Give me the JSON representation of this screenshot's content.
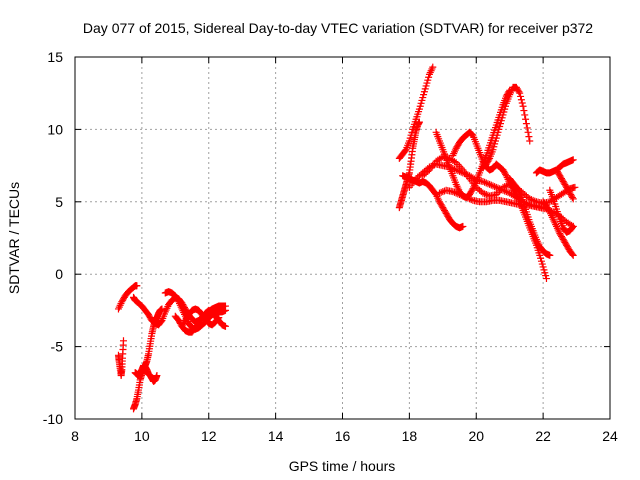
{
  "chart_data": {
    "type": "scatter",
    "title": "Day 077 of 2015, Sidereal Day-to-day VTEC variation (SDTVAR) for receiver p372",
    "xlabel": "GPS time / hours",
    "ylabel": "SDTVAR / TECUs",
    "xlim": [
      8,
      24
    ],
    "ylim": [
      -10,
      15
    ],
    "xticks": [
      "8",
      "10",
      "12",
      "14",
      "16",
      "18",
      "20",
      "22",
      "24"
    ],
    "yticks": [
      "15",
      "10",
      "5",
      "0",
      "-5",
      "-10"
    ],
    "xtick_values": [
      8,
      10,
      12,
      14,
      16,
      18,
      20,
      22,
      24
    ],
    "ytick_values": [
      15,
      10,
      5,
      0,
      -5,
      -10
    ],
    "grid": true,
    "marker": "plus",
    "color": "#ff0000",
    "series": [
      {
        "x": [
          9.3,
          9.4,
          9.5,
          9.6,
          9.7,
          9.8,
          9.85
        ],
        "y": [
          -2.4,
          -1.9,
          -1.5,
          -1.2,
          -1.0,
          -0.8,
          -0.8
        ]
      },
      {
        "x": [
          9.3,
          9.32,
          9.35,
          9.38,
          9.4,
          9.42,
          9.45
        ],
        "y": [
          -5.6,
          -6.0,
          -6.5,
          -7.0,
          -6.6,
          -5.8,
          -4.6
        ]
      },
      {
        "x": [
          9.75,
          9.8,
          9.85,
          9.9,
          9.95,
          10.0,
          10.05,
          10.1,
          10.15,
          10.2,
          10.25,
          10.3,
          10.35,
          10.4,
          10.45,
          10.5,
          10.55,
          10.6
        ],
        "y": [
          -9.3,
          -9.0,
          -8.6,
          -8.0,
          -7.3,
          -6.9,
          -6.6,
          -6.3,
          -6.0,
          -5.5,
          -4.8,
          -4.1,
          -3.6,
          -3.2,
          -3.0,
          -2.7,
          -2.5,
          -2.4
        ]
      },
      {
        "x": [
          9.8,
          9.85,
          9.9,
          9.95,
          10.0,
          10.05,
          10.1,
          10.15,
          10.2,
          10.25,
          10.3,
          10.35,
          10.4,
          10.45
        ],
        "y": [
          -6.8,
          -6.9,
          -7.0,
          -6.8,
          -6.6,
          -6.3,
          -6.4,
          -6.6,
          -6.9,
          -7.0,
          -7.2,
          -7.4,
          -7.3,
          -7.0
        ]
      },
      {
        "x": [
          9.75,
          9.8,
          9.9,
          10.0,
          10.1,
          10.2,
          10.3,
          10.4,
          10.5,
          10.6,
          10.7,
          10.8,
          10.9,
          11.0,
          11.1,
          11.2,
          11.3,
          11.4,
          11.5,
          11.6,
          11.7,
          11.8,
          11.9,
          12.0,
          12.1,
          12.2,
          12.3,
          12.4,
          12.5
        ],
        "y": [
          -1.6,
          -1.8,
          -2.0,
          -2.2,
          -2.5,
          -2.8,
          -3.2,
          -3.4,
          -3.5,
          -3.2,
          -2.6,
          -2.1,
          -1.8,
          -1.6,
          -1.7,
          -2.0,
          -2.4,
          -2.8,
          -3.1,
          -3.3,
          -3.2,
          -3.0,
          -2.8,
          -2.6,
          -2.4,
          -2.3,
          -2.2,
          -2.2,
          -2.2
        ]
      },
      {
        "x": [
          10.7,
          10.8,
          10.9,
          11.0,
          11.1,
          11.2,
          11.3,
          11.4,
          11.5,
          11.6,
          11.7,
          11.8,
          11.9,
          12.0,
          12.1,
          12.2,
          12.3,
          12.4,
          12.5
        ],
        "y": [
          -1.3,
          -1.2,
          -1.3,
          -1.5,
          -1.9,
          -2.4,
          -2.9,
          -3.4,
          -3.7,
          -3.8,
          -3.7,
          -3.5,
          -3.3,
          -3.0,
          -2.8,
          -2.7,
          -2.6,
          -2.6,
          -2.5
        ]
      },
      {
        "x": [
          11.0,
          11.1,
          11.2,
          11.3,
          11.4,
          11.5,
          11.6,
          11.7,
          11.8,
          11.9,
          12.0,
          12.1,
          12.2,
          12.3,
          12.4,
          12.5
        ],
        "y": [
          -2.9,
          -3.2,
          -3.6,
          -3.9,
          -4.0,
          -4.0,
          -3.7,
          -3.4,
          -3.0,
          -2.7,
          -2.5,
          -2.6,
          -2.9,
          -3.2,
          -3.5,
          -3.6
        ]
      },
      {
        "x": [
          11.2,
          11.3,
          11.4,
          11.5,
          11.6,
          11.7,
          11.8,
          11.9,
          12.0,
          12.1,
          12.2,
          12.3
        ],
        "y": [
          -3.6,
          -3.2,
          -2.8,
          -2.5,
          -2.4,
          -2.5,
          -2.8,
          -3.1,
          -3.4,
          -3.5,
          -3.3,
          -3.0
        ]
      },
      {
        "x": [
          17.7,
          17.8,
          17.9,
          18.0,
          18.1,
          18.2,
          18.3,
          18.4,
          18.5,
          18.6,
          18.7
        ],
        "y": [
          8.0,
          8.3,
          8.6,
          9.2,
          10.0,
          10.7,
          11.4,
          12.2,
          13.0,
          13.8,
          14.3
        ]
      },
      {
        "x": [
          17.7,
          17.75,
          17.8,
          17.85,
          17.9,
          17.95,
          18.0,
          18.05,
          18.1,
          18.15,
          18.2,
          18.25,
          18.3
        ],
        "y": [
          4.6,
          5.0,
          5.4,
          5.8,
          6.2,
          6.6,
          7.0,
          7.8,
          8.7,
          9.3,
          9.9,
          10.3,
          10.5
        ]
      },
      {
        "x": [
          17.8,
          17.9,
          18.0,
          18.1,
          18.2,
          18.3,
          18.4,
          18.5,
          18.6,
          18.7,
          18.8,
          18.9,
          19.0,
          19.1,
          19.2,
          19.3,
          19.4,
          19.5,
          19.6
        ],
        "y": [
          6.8,
          6.7,
          6.6,
          6.5,
          6.4,
          6.3,
          6.4,
          6.3,
          6.1,
          5.8,
          5.5,
          5.0,
          4.6,
          4.2,
          3.8,
          3.5,
          3.3,
          3.2,
          3.3
        ]
      },
      {
        "x": [
          18.0,
          18.2,
          18.4,
          18.6,
          18.8,
          19.0,
          19.2,
          19.4,
          19.6,
          19.8,
          20.0,
          20.2,
          20.4,
          20.6,
          20.8,
          21.0,
          21.2,
          21.4,
          21.6,
          21.8,
          22.0
        ],
        "y": [
          6.0,
          6.6,
          7.0,
          7.4,
          7.6,
          7.5,
          7.4,
          7.2,
          7.0,
          6.8,
          6.5,
          6.4,
          6.2,
          6.0,
          5.8,
          5.6,
          5.3,
          5.0,
          4.8,
          4.7,
          4.6
        ]
      },
      {
        "x": [
          18.4,
          18.6,
          18.8,
          19.0,
          19.2,
          19.4,
          19.6,
          19.8,
          20.0,
          20.2,
          20.4,
          20.6,
          20.8,
          21.0,
          21.2,
          21.4,
          21.6,
          21.8,
          22.0,
          22.2,
          22.4,
          22.6,
          22.8,
          22.95
        ],
        "y": [
          6.8,
          7.2,
          7.8,
          8.1,
          8.0,
          7.7,
          7.2,
          6.6,
          6.0,
          5.6,
          5.4,
          5.5,
          6.0,
          6.2,
          6.0,
          5.6,
          5.2,
          5.0,
          4.9,
          5.0,
          5.3,
          5.6,
          5.9,
          6.0
        ]
      },
      {
        "x": [
          18.8,
          18.9,
          19.0,
          19.1,
          19.2,
          19.3,
          19.4,
          19.5,
          19.6,
          19.7,
          19.8,
          19.9,
          20.0,
          20.1,
          20.2,
          20.3,
          20.4,
          20.5,
          20.6,
          20.7,
          20.8,
          20.9,
          21.0
        ],
        "y": [
          9.8,
          9.2,
          8.6,
          8.0,
          7.4,
          6.8,
          6.2,
          5.7,
          5.4,
          5.3,
          5.5,
          5.9,
          6.4,
          7.0,
          7.6,
          8.2,
          8.9,
          9.6,
          10.3,
          11.0,
          11.7,
          12.3,
          12.7
        ]
      },
      {
        "x": [
          19.3,
          19.4,
          19.5,
          19.6,
          19.7,
          19.8,
          19.9,
          20.0,
          20.1,
          20.2,
          20.3,
          20.4,
          20.5,
          20.6,
          20.7,
          20.8
        ],
        "y": [
          8.2,
          8.7,
          9.1,
          9.4,
          9.6,
          9.8,
          9.6,
          9.0,
          8.4,
          7.8,
          7.4,
          7.2,
          7.3,
          7.6,
          7.4,
          7.2
        ]
      },
      {
        "x": [
          18.9,
          19.1,
          19.3,
          19.5,
          19.7,
          19.9,
          20.1,
          20.3,
          20.5,
          20.7,
          20.9,
          21.1,
          21.3,
          21.5,
          21.7,
          21.9,
          22.1,
          22.3,
          22.5,
          22.7,
          22.9
        ],
        "y": [
          5.6,
          5.8,
          5.7,
          5.5,
          5.3,
          5.1,
          5.0,
          5.0,
          5.1,
          5.1,
          5.0,
          4.9,
          4.8,
          4.8,
          4.7,
          4.6,
          4.5,
          4.3,
          4.0,
          3.6,
          3.3
        ]
      },
      {
        "x": [
          20.2,
          20.3,
          20.4,
          20.5,
          20.6,
          20.7,
          20.8,
          20.9,
          21.0,
          21.1,
          21.2,
          21.3,
          21.4,
          21.5,
          21.6
        ],
        "y": [
          7.4,
          7.6,
          8.0,
          8.6,
          9.4,
          10.2,
          11.0,
          11.8,
          12.4,
          12.9,
          12.9,
          12.5,
          11.6,
          10.4,
          9.2
        ]
      },
      {
        "x": [
          21.0,
          21.1,
          21.2,
          21.3,
          21.4,
          21.5,
          21.6,
          21.7,
          21.8,
          21.9,
          22.0,
          22.1,
          22.2
        ],
        "y": [
          6.6,
          6.3,
          6.0,
          5.6,
          5.0,
          4.3,
          3.6,
          3.0,
          2.4,
          1.9,
          1.6,
          1.4,
          1.3
        ]
      },
      {
        "x": [
          20.8,
          20.9,
          21.0,
          21.1,
          21.2,
          21.3,
          21.4,
          21.5,
          21.6,
          21.7,
          21.8,
          21.9,
          22.0,
          22.1
        ],
        "y": [
          7.2,
          6.8,
          6.3,
          5.9,
          5.5,
          5.0,
          4.4,
          3.8,
          3.2,
          2.6,
          2.0,
          1.3,
          0.5,
          -0.3
        ]
      },
      {
        "x": [
          21.8,
          21.9,
          22.0,
          22.1,
          22.2,
          22.3,
          22.4,
          22.5,
          22.6,
          22.7,
          22.8,
          22.9
        ],
        "y": [
          7.0,
          7.2,
          7.1,
          7.0,
          7.0,
          7.1,
          7.2,
          7.4,
          7.6,
          7.7,
          7.8,
          7.9
        ]
      },
      {
        "x": [
          22.0,
          22.1,
          22.2,
          22.3,
          22.4,
          22.5,
          22.6,
          22.7,
          22.8,
          22.9
        ],
        "y": [
          5.0,
          4.7,
          4.3,
          3.8,
          3.3,
          2.8,
          2.4,
          2.0,
          1.6,
          1.3
        ]
      },
      {
        "x": [
          22.2,
          22.3,
          22.4,
          22.5,
          22.6,
          22.7,
          22.8,
          22.9
        ],
        "y": [
          5.8,
          5.2,
          4.5,
          3.8,
          3.2,
          2.9,
          3.0,
          3.3
        ]
      },
      {
        "x": [
          22.4,
          22.5,
          22.6,
          22.7,
          22.8,
          22.9
        ],
        "y": [
          7.2,
          6.8,
          6.4,
          6.0,
          5.6,
          5.2
        ]
      }
    ]
  }
}
